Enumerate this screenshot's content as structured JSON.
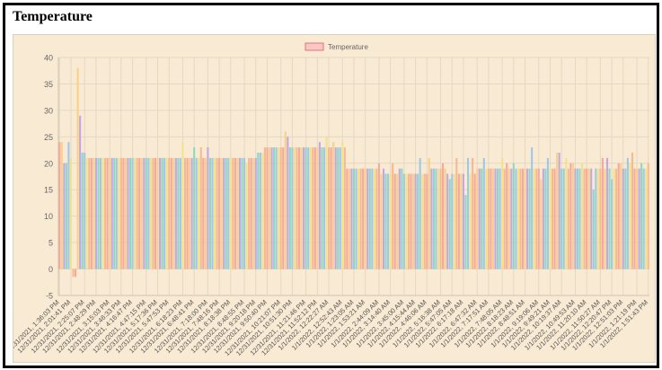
{
  "page": {
    "title": "Temperature"
  },
  "colors": {
    "background": "#f9ead3",
    "grid": "#e4d8c3",
    "palette": [
      "#f4a9a0",
      "#f8d08a",
      "#c4a6e4",
      "#8fd8c0",
      "#9ec8ea",
      "#f2e28c",
      "#f7b98e"
    ],
    "legend_fill": "#f7c9c4",
    "legend_stroke": "#e8707a"
  },
  "chart_data": {
    "type": "bar",
    "title": "",
    "xlabel": "",
    "ylabel": "",
    "ylim": [
      -5,
      40
    ],
    "yticks": [
      -5,
      0,
      5,
      10,
      15,
      20,
      25,
      30,
      35,
      40
    ],
    "grid": true,
    "legend_position": "top-center",
    "series": [
      {
        "name": "Temperature",
        "values": [
          24,
          24,
          20,
          20,
          24,
          21,
          -1.5,
          -1.5,
          38,
          29,
          22,
          22,
          21,
          21,
          21,
          21,
          21,
          21,
          21,
          21,
          21,
          21,
          21,
          21,
          21,
          21,
          21,
          21,
          21,
          21,
          21,
          21,
          21,
          21,
          21,
          21,
          21,
          21,
          21,
          21,
          21,
          21,
          21,
          21,
          21,
          21,
          21,
          21,
          21,
          21,
          21,
          21,
          21,
          21,
          24,
          21,
          21,
          21,
          21,
          23,
          21,
          21,
          23,
          21,
          21,
          23,
          21,
          21,
          21,
          21,
          21,
          21,
          21,
          21,
          21,
          21,
          21,
          21,
          21,
          21,
          21,
          21,
          20,
          21,
          21,
          21,
          21,
          22,
          22,
          22,
          23,
          23,
          23,
          23,
          23,
          23,
          23,
          23,
          23,
          26,
          25,
          23,
          23,
          23,
          23,
          23,
          23,
          23,
          23,
          23,
          23,
          23,
          23,
          23,
          24,
          23,
          23,
          25,
          23,
          23,
          24,
          23,
          23,
          23,
          24,
          23,
          19,
          19,
          19,
          19,
          19,
          19,
          19,
          19,
          19,
          19,
          19,
          19,
          19,
          19,
          20,
          18,
          19,
          18,
          18,
          18,
          20,
          18,
          18,
          19,
          19,
          18,
          18,
          18,
          18,
          18,
          18,
          18,
          21,
          18,
          18,
          18,
          21,
          19,
          19,
          19,
          19,
          19,
          20,
          19,
          18,
          17,
          18,
          18,
          21,
          18,
          18,
          18,
          14,
          21,
          18,
          21,
          18,
          19,
          19,
          19,
          21,
          19,
          19,
          19,
          19,
          19,
          19,
          19,
          21,
          19,
          20,
          19,
          19,
          20,
          19,
          19,
          19,
          19,
          19,
          19,
          19,
          23,
          19,
          19,
          19,
          17,
          19,
          19,
          21,
          19,
          19,
          19,
          22,
          22,
          19,
          19,
          21,
          19,
          20,
          20,
          19,
          19,
          19,
          20,
          19,
          19,
          19,
          19,
          15,
          19,
          19,
          19,
          21,
          19,
          21,
          19,
          17,
          19,
          19,
          20,
          20,
          19,
          19,
          21,
          20,
          22,
          19,
          19,
          19,
          20,
          19,
          19,
          20
        ]
      }
    ],
    "x_tick_labels": [
      "12/31/2021, 1:36:03 PM",
      "12/31/2021, 2:01:41 PM",
      "12/31/2021, 2:25:07 PM",
      "12/31/2021, 2:48:29 PM",
      "12/31/2021, 3:15:03 PM",
      "12/31/2021, 3:46:33 PM",
      "12/31/2021, 4:16:47 PM",
      "12/31/2021, 4:47:15 PM",
      "12/31/2021, 5:17:36 PM",
      "12/31/2021, 5:47:53 PM",
      "12/31/2021, 6:18:23 PM",
      "12/31/2021, 6:48:41 PM",
      "12/31/2021, 7:18:00 PM",
      "12/31/2021, 7:48:16 PM",
      "12/31/2021, 8:18:38 PM",
      "12/31/2021, 8:48:55 PM",
      "12/31/2021, 9:20:18 PM",
      "12/31/2021, 9:50:40 PM",
      "12/31/2021, 10:21:07 PM",
      "12/31/2021, 10:51:30 PM",
      "12/31/2021, 11:21:46 PM",
      "12/31/2021, 11:52:12 PM",
      "1/1/2022, 12:22:27 AM",
      "1/1/2022, 12:52:43 AM",
      "1/1/2022, 1:23:05 AM",
      "1/1/2022, 1:53:21 AM",
      "1/1/2022, 2:44:09 AM",
      "1/1/2022, 3:14:40 AM",
      "1/1/2022, 3:45:00 AM",
      "1/1/2022, 4:15:44 AM",
      "1/1/2022, 4:46:06 AM",
      "1/1/2022, 5:16:38 AM",
      "1/1/2022, 5:47:05 AM",
      "1/1/2022, 6:17:18 AM",
      "1/1/2022, 6:47:32 AM",
      "1/1/2022, 7:17:51 AM",
      "1/1/2022, 7:48:05 AM",
      "1/1/2022, 8:18:23 AM",
      "1/1/2022, 8:48:51 AM",
      "1/1/2022, 9:19:06 AM",
      "1/1/2022, 9:49:21 AM",
      "1/1/2022, 10:19:37 AM",
      "1/1/2022, 10:49:53 AM",
      "1/1/2022, 11:20:10 AM",
      "1/1/2022, 11:50:27 AM",
      "1/1/2022, 12:20:47 PM",
      "1/1/2022, 12:51:03 PM",
      "1/1/2022, 1:21:19 PM",
      "1/1/2022, 1:51:43 PM"
    ]
  }
}
